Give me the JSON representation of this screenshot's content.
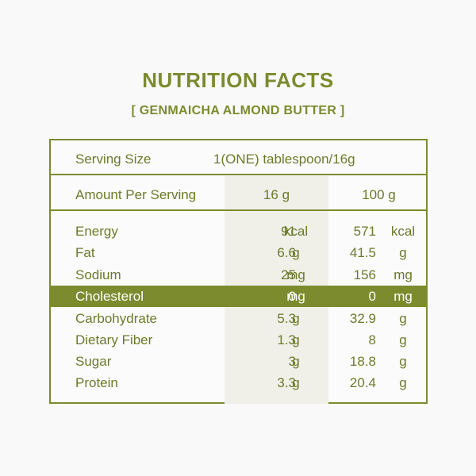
{
  "header": {
    "title": "NUTRITION FACTS",
    "subtitle": "[ GENMAICHA ALMOND BUTTER ]"
  },
  "serving": {
    "label": "Serving Size",
    "value": "1(ONE) tablespoon/16g"
  },
  "columns": {
    "label": "Amount Per Serving",
    "col1": "16 g",
    "col2": "100 g"
  },
  "nutrients": [
    {
      "name": "Energy",
      "v1": "91",
      "u1": "kcal",
      "v2": "571",
      "u2": "kcal"
    },
    {
      "name": "Fat",
      "v1": "6.6",
      "u1": "g",
      "v2": "41.5",
      "u2": "g"
    },
    {
      "name": "Sodium",
      "v1": "25",
      "u1": "mg",
      "v2": "156",
      "u2": "mg"
    },
    {
      "name": "Cholesterol",
      "v1": "0",
      "u1": "mg",
      "v2": "0",
      "u2": "mg",
      "highlight": true
    },
    {
      "name": "Carbohydrate",
      "v1": "5.3",
      "u1": "g",
      "v2": "32.9",
      "u2": "g"
    },
    {
      "name": "Dietary Fiber",
      "v1": "1.3",
      "u1": "g",
      "v2": "8",
      "u2": "g"
    },
    {
      "name": "Sugar",
      "v1": "3",
      "u1": "g",
      "v2": "18.8",
      "u2": "g"
    },
    {
      "name": "Protein",
      "v1": "3.3",
      "u1": "g",
      "v2": "20.4",
      "u2": "g"
    }
  ],
  "colors": {
    "accent": "#7b8b2e",
    "shade": "#f0f0e9",
    "background": "#f9f9f9"
  }
}
